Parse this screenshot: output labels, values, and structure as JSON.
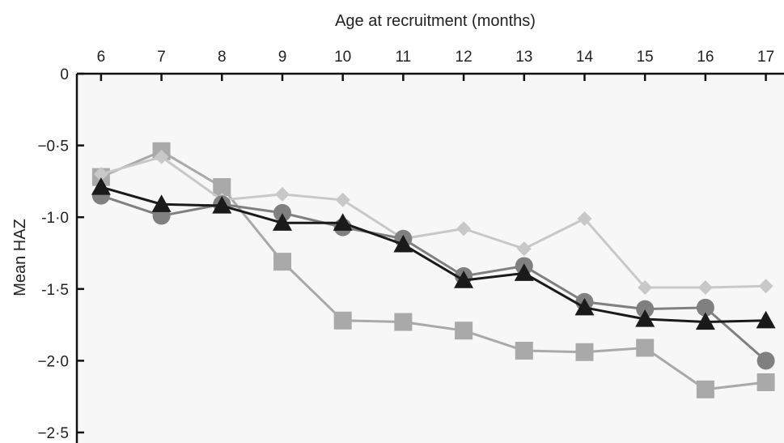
{
  "chart_data": {
    "type": "line",
    "xlabel": "Age at recruitment (months)",
    "ylabel": "Mean HAZ",
    "xlim": [
      5.6,
      17.3
    ],
    "ylim": [
      -2.5,
      0
    ],
    "x": [
      6,
      7,
      8,
      9,
      10,
      11,
      12,
      13,
      14,
      15,
      16,
      17
    ],
    "x_tick_labels": [
      "6",
      "7",
      "8",
      "9",
      "10",
      "11",
      "12",
      "13",
      "14",
      "15",
      "16",
      "17"
    ],
    "y_ticks": [
      0,
      -0.5,
      -1.0,
      -1.5,
      -2.0,
      -2.5
    ],
    "y_tick_labels": [
      "0",
      "−0·5",
      "-1·0",
      "-1·5",
      "−2·0",
      "−2·5"
    ],
    "grid": false,
    "series": [
      {
        "marker": "square",
        "color": "#a9a9a9",
        "values": [
          -0.72,
          -0.54,
          -0.79,
          -1.31,
          -1.72,
          -1.73,
          -1.79,
          -1.93,
          -1.94,
          -1.91,
          -2.2,
          -2.15
        ]
      },
      {
        "marker": "diamond",
        "color": "#c8c8c8",
        "values": [
          -0.7,
          -0.58,
          -0.88,
          -0.84,
          -0.88,
          -1.15,
          -1.08,
          -1.22,
          -1.01,
          -1.49,
          -1.49,
          -1.48
        ]
      },
      {
        "marker": "circle",
        "color": "#808080",
        "values": [
          -0.85,
          -0.99,
          -0.91,
          -0.97,
          -1.07,
          -1.15,
          -1.41,
          -1.34,
          -1.59,
          -1.64,
          -1.63,
          -2.0
        ]
      },
      {
        "marker": "triangle",
        "color": "#1a1a1a",
        "values": [
          -0.79,
          -0.91,
          -0.92,
          -1.04,
          -1.04,
          -1.19,
          -1.44,
          -1.39,
          -1.63,
          -1.71,
          -1.73,
          -1.72
        ]
      }
    ],
    "background_color": "#f7f7f7"
  }
}
